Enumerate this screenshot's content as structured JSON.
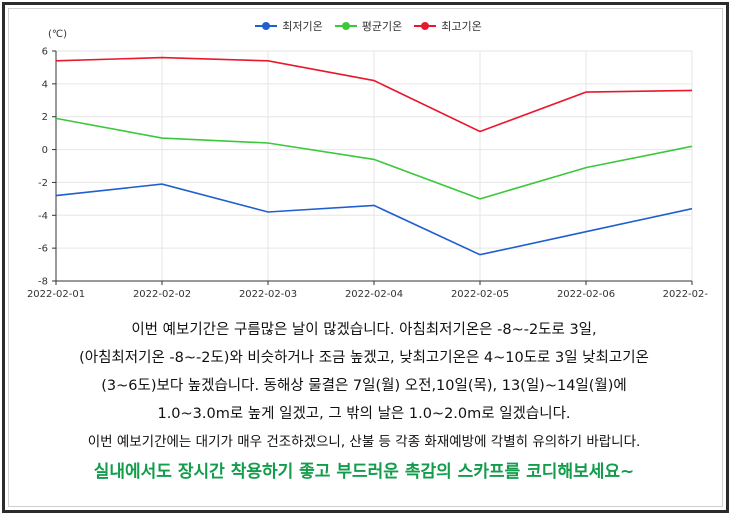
{
  "chart_data": {
    "type": "line",
    "x": [
      "2022-02-01",
      "2022-02-02",
      "2022-02-03",
      "2022-02-04",
      "2022-02-05",
      "2022-02-06",
      "2022-02-"
    ],
    "y_unit": "(℃)",
    "ylim": [
      -8,
      6
    ],
    "yticks": [
      -8,
      -6,
      -4,
      -2,
      0,
      2,
      4,
      6
    ],
    "grid": true,
    "legend_position": "top-center",
    "series": [
      {
        "name": "최저기온",
        "color": "#1f5fcf",
        "values": [
          -2.8,
          -2.1,
          -3.8,
          -3.4,
          -6.4,
          -5.0,
          -3.6
        ]
      },
      {
        "name": "평균기온",
        "color": "#3cc83c",
        "values": [
          1.9,
          0.7,
          0.4,
          -0.6,
          -3.0,
          -1.1,
          0.2
        ]
      },
      {
        "name": "최고기온",
        "color": "#e8192c",
        "values": [
          5.4,
          5.6,
          5.4,
          4.2,
          1.1,
          3.5,
          3.6
        ]
      }
    ]
  },
  "forecast_text": [
    "이번 예보기간은 구름많은 날이 많겠습니다. 아침최저기온은 -8~-2도로 3일,",
    "(아침최저기온 -8~-2도)와 비슷하거나 조금 높겠고, 낮최고기온은 4~10도로 3일 낮최고기온",
    "(3~6도)보다 높겠습니다. 동해상 물결은 7일(월) 오전,10일(목), 13(일)~14일(월)에",
    "1.0~3.0m로 높게 일겠고, 그 밖의 날은 1.0~2.0m로 일겠습니다.",
    "이번 예보기간에는 대기가 매우 건조하겠으니, 산불 등 각종 화재예방에 각별히 유의하기 바랍니다."
  ],
  "highlight_text": "실내에서도 장시간 착용하기 좋고 부드러운 촉감의 스카프를 코디해보세요~"
}
